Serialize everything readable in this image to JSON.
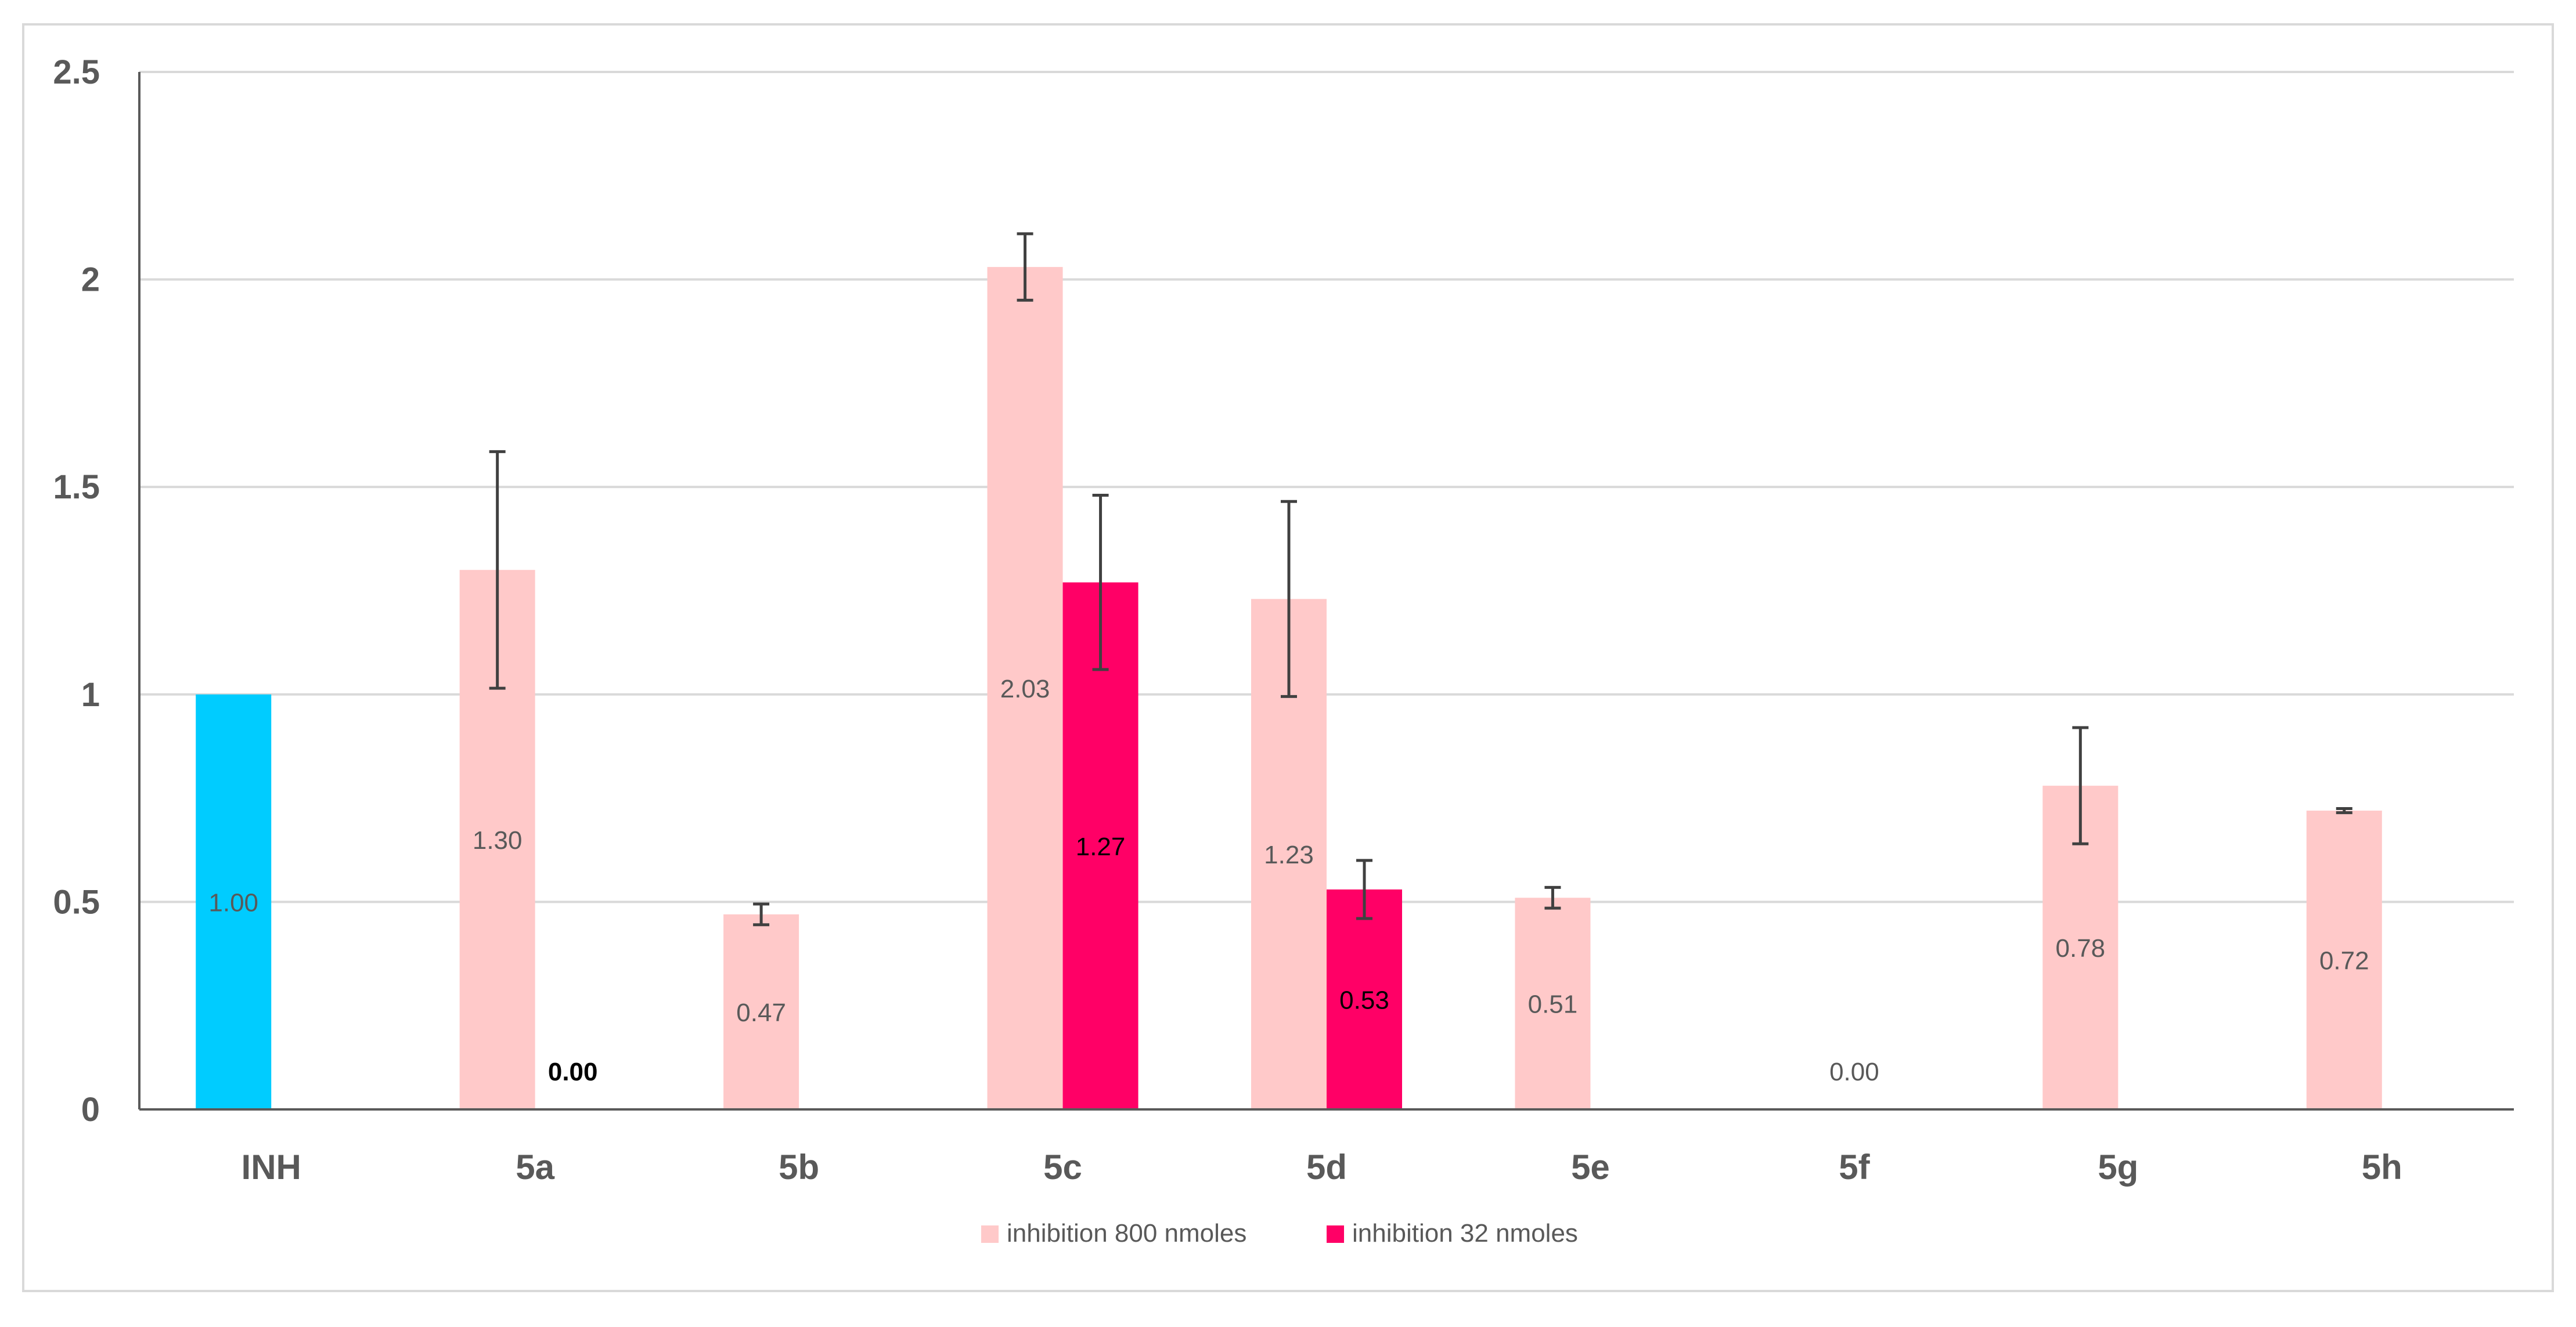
{
  "chart_data": {
    "type": "bar",
    "title": "",
    "xlabel": "",
    "ylabel": "",
    "ylim": [
      0,
      2.5
    ],
    "yticks": [
      "0",
      "0.5",
      "1",
      "1.5",
      "2",
      "2.5"
    ],
    "ytick_values": [
      0,
      0.5,
      1,
      1.5,
      2,
      2.5
    ],
    "grid": true,
    "legend_position": "bottom",
    "categories": [
      "INH",
      "5a",
      "5b",
      "5c",
      "5d",
      "5e",
      "5f",
      "5g",
      "5h"
    ],
    "series": [
      {
        "name": "inhibition 800 nmoles",
        "color": "#FFC9C9",
        "label_color": "#595959",
        "values": [
          1.0,
          1.3,
          0.47,
          2.03,
          1.23,
          0.51,
          0.0,
          0.78,
          0.72
        ],
        "labels": [
          "1.00",
          "1.30",
          "0.47",
          "2.03",
          "1.23",
          "0.51",
          "0.00",
          "0.78",
          "0.72"
        ],
        "bar_colors": [
          "#00CCFF",
          null,
          null,
          null,
          null,
          null,
          null,
          null,
          null
        ],
        "errors": [
          null,
          0.285,
          0.025,
          0.08,
          0.235,
          0.025,
          null,
          0.14,
          0.005
        ]
      },
      {
        "name": "inhibition 32 nmoles",
        "color": "#FF0066",
        "label_color": "#000000",
        "values": [
          null,
          0.0,
          null,
          1.27,
          0.53,
          null,
          null,
          null,
          null
        ],
        "labels": [
          null,
          "0.00",
          null,
          "1.27",
          "0.53",
          null,
          null,
          null,
          null
        ],
        "errors": [
          null,
          null,
          null,
          0.21,
          0.07,
          null,
          null,
          null,
          null
        ]
      }
    ]
  }
}
